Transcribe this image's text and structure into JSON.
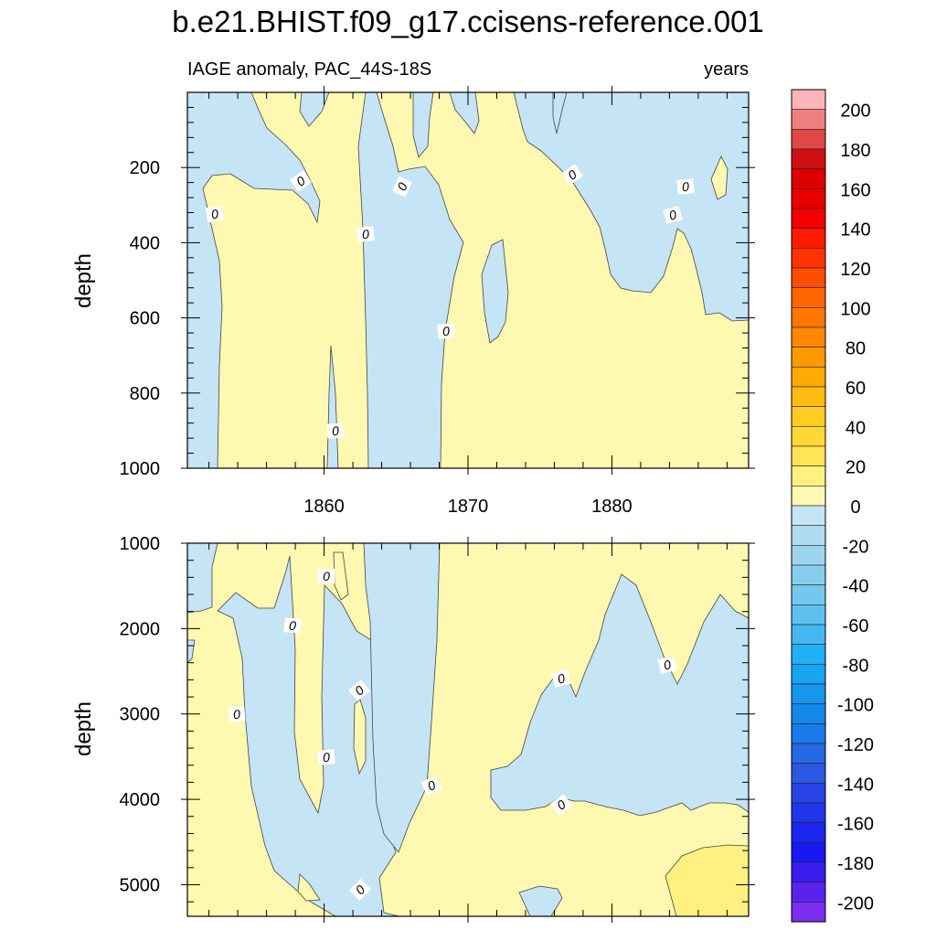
{
  "title": "b.e21.BHIST.f09_g17.ccisens-reference.001",
  "chart_data": {
    "type": "heatmap",
    "title": "b.e21.BHIST.f09_g17.ccisens-reference.001",
    "subtitle_left": "IAGE anomaly, PAC_44S-18S",
    "subtitle_right": "years",
    "x_axis": {
      "ticks": [
        1860,
        1870,
        1880
      ],
      "labels": [
        "1860",
        "1870",
        "1880"
      ],
      "range": [
        1850.5,
        1889.5
      ]
    },
    "panels": [
      {
        "name": "upper",
        "ylabel": "depth",
        "ylim": [
          0,
          1000
        ],
        "yticks": [
          200,
          400,
          600,
          800,
          1000
        ],
        "ytick_labels": [
          "200",
          "400",
          "600",
          "800",
          "1000"
        ],
        "contour_labels": [
          "0",
          "0",
          "0",
          "0",
          "0",
          "0",
          "0",
          "0",
          "0"
        ]
      },
      {
        "name": "lower",
        "ylabel": "depth",
        "ylim": [
          1000,
          5370
        ],
        "yticks": [
          1000,
          2000,
          3000,
          4000,
          5000
        ],
        "ytick_labels": [
          "1000",
          "2000",
          "3000",
          "4000",
          "5000"
        ],
        "contour_labels": [
          "0",
          "0",
          "0",
          "0",
          "0",
          "0",
          "0",
          "0",
          "0",
          "0",
          "0"
        ]
      }
    ],
    "colorbar": {
      "labels": [
        "200",
        "180",
        "160",
        "140",
        "120",
        "100",
        "80",
        "60",
        "40",
        "20",
        "0",
        "-20",
        "-40",
        "-60",
        "-80",
        "-100",
        "-120",
        "-140",
        "-160",
        "-180",
        "-200"
      ],
      "colors": [
        "#fbb4b9",
        "#f08080",
        "#e04848",
        "#d01010",
        "#dd0000",
        "#e80000",
        "#f20000",
        "#ff1a00",
        "#ff3300",
        "#ff4d00",
        "#ff6600",
        "#ff7700",
        "#ff8800",
        "#ff9900",
        "#ffaa00",
        "#ffbb11",
        "#ffcc22",
        "#ffd833",
        "#ffe455",
        "#fff07f",
        "#fff8b0",
        "#c5e4f5",
        "#b0dbf0",
        "#9ed5ee",
        "#88cdee",
        "#74c7ee",
        "#5ec0f0",
        "#44b8f2",
        "#1fb0f5",
        "#18a4f2",
        "#1597ee",
        "#1388ea",
        "#1a7aea",
        "#2468e6",
        "#2d57e2",
        "#2a45e5",
        "#2036ea",
        "#1a26ee",
        "#1818f2",
        "#3a1cf0",
        "#5a22ee",
        "#7a2eee"
      ]
    },
    "fill_colors": {
      "positive": "#fff8b0",
      "negative": "#c5e4f5",
      "strong_positive": "#fff07f"
    }
  }
}
